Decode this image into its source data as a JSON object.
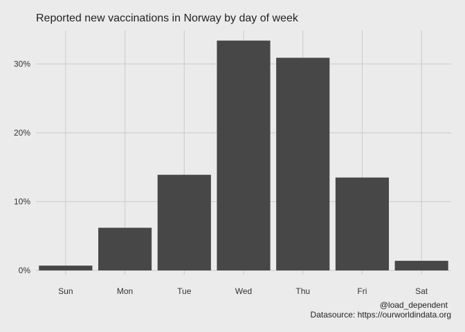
{
  "colors": {
    "background": "#ebebeb",
    "grid": "#cfcfcf",
    "bar": "#474747"
  },
  "chart_data": {
    "type": "bar",
    "title": "Reported new vaccinations in Norway by day of week",
    "xlabel": "",
    "ylabel": "",
    "categories": [
      "Sun",
      "Mon",
      "Tue",
      "Wed",
      "Thu",
      "Fri",
      "Sat"
    ],
    "values": [
      0.7,
      6.2,
      13.9,
      33.4,
      30.9,
      13.5,
      1.4
    ],
    "y_unit": "%",
    "ylim": [
      0,
      35
    ],
    "yticks": [
      0,
      10,
      20,
      30
    ],
    "ytick_labels": [
      "0%",
      "10%",
      "20%",
      "30%"
    ],
    "grid": true,
    "legend": "none",
    "caption_lines": [
      "@load_dependent",
      "Datasource: https://ourworldindata.org"
    ]
  }
}
